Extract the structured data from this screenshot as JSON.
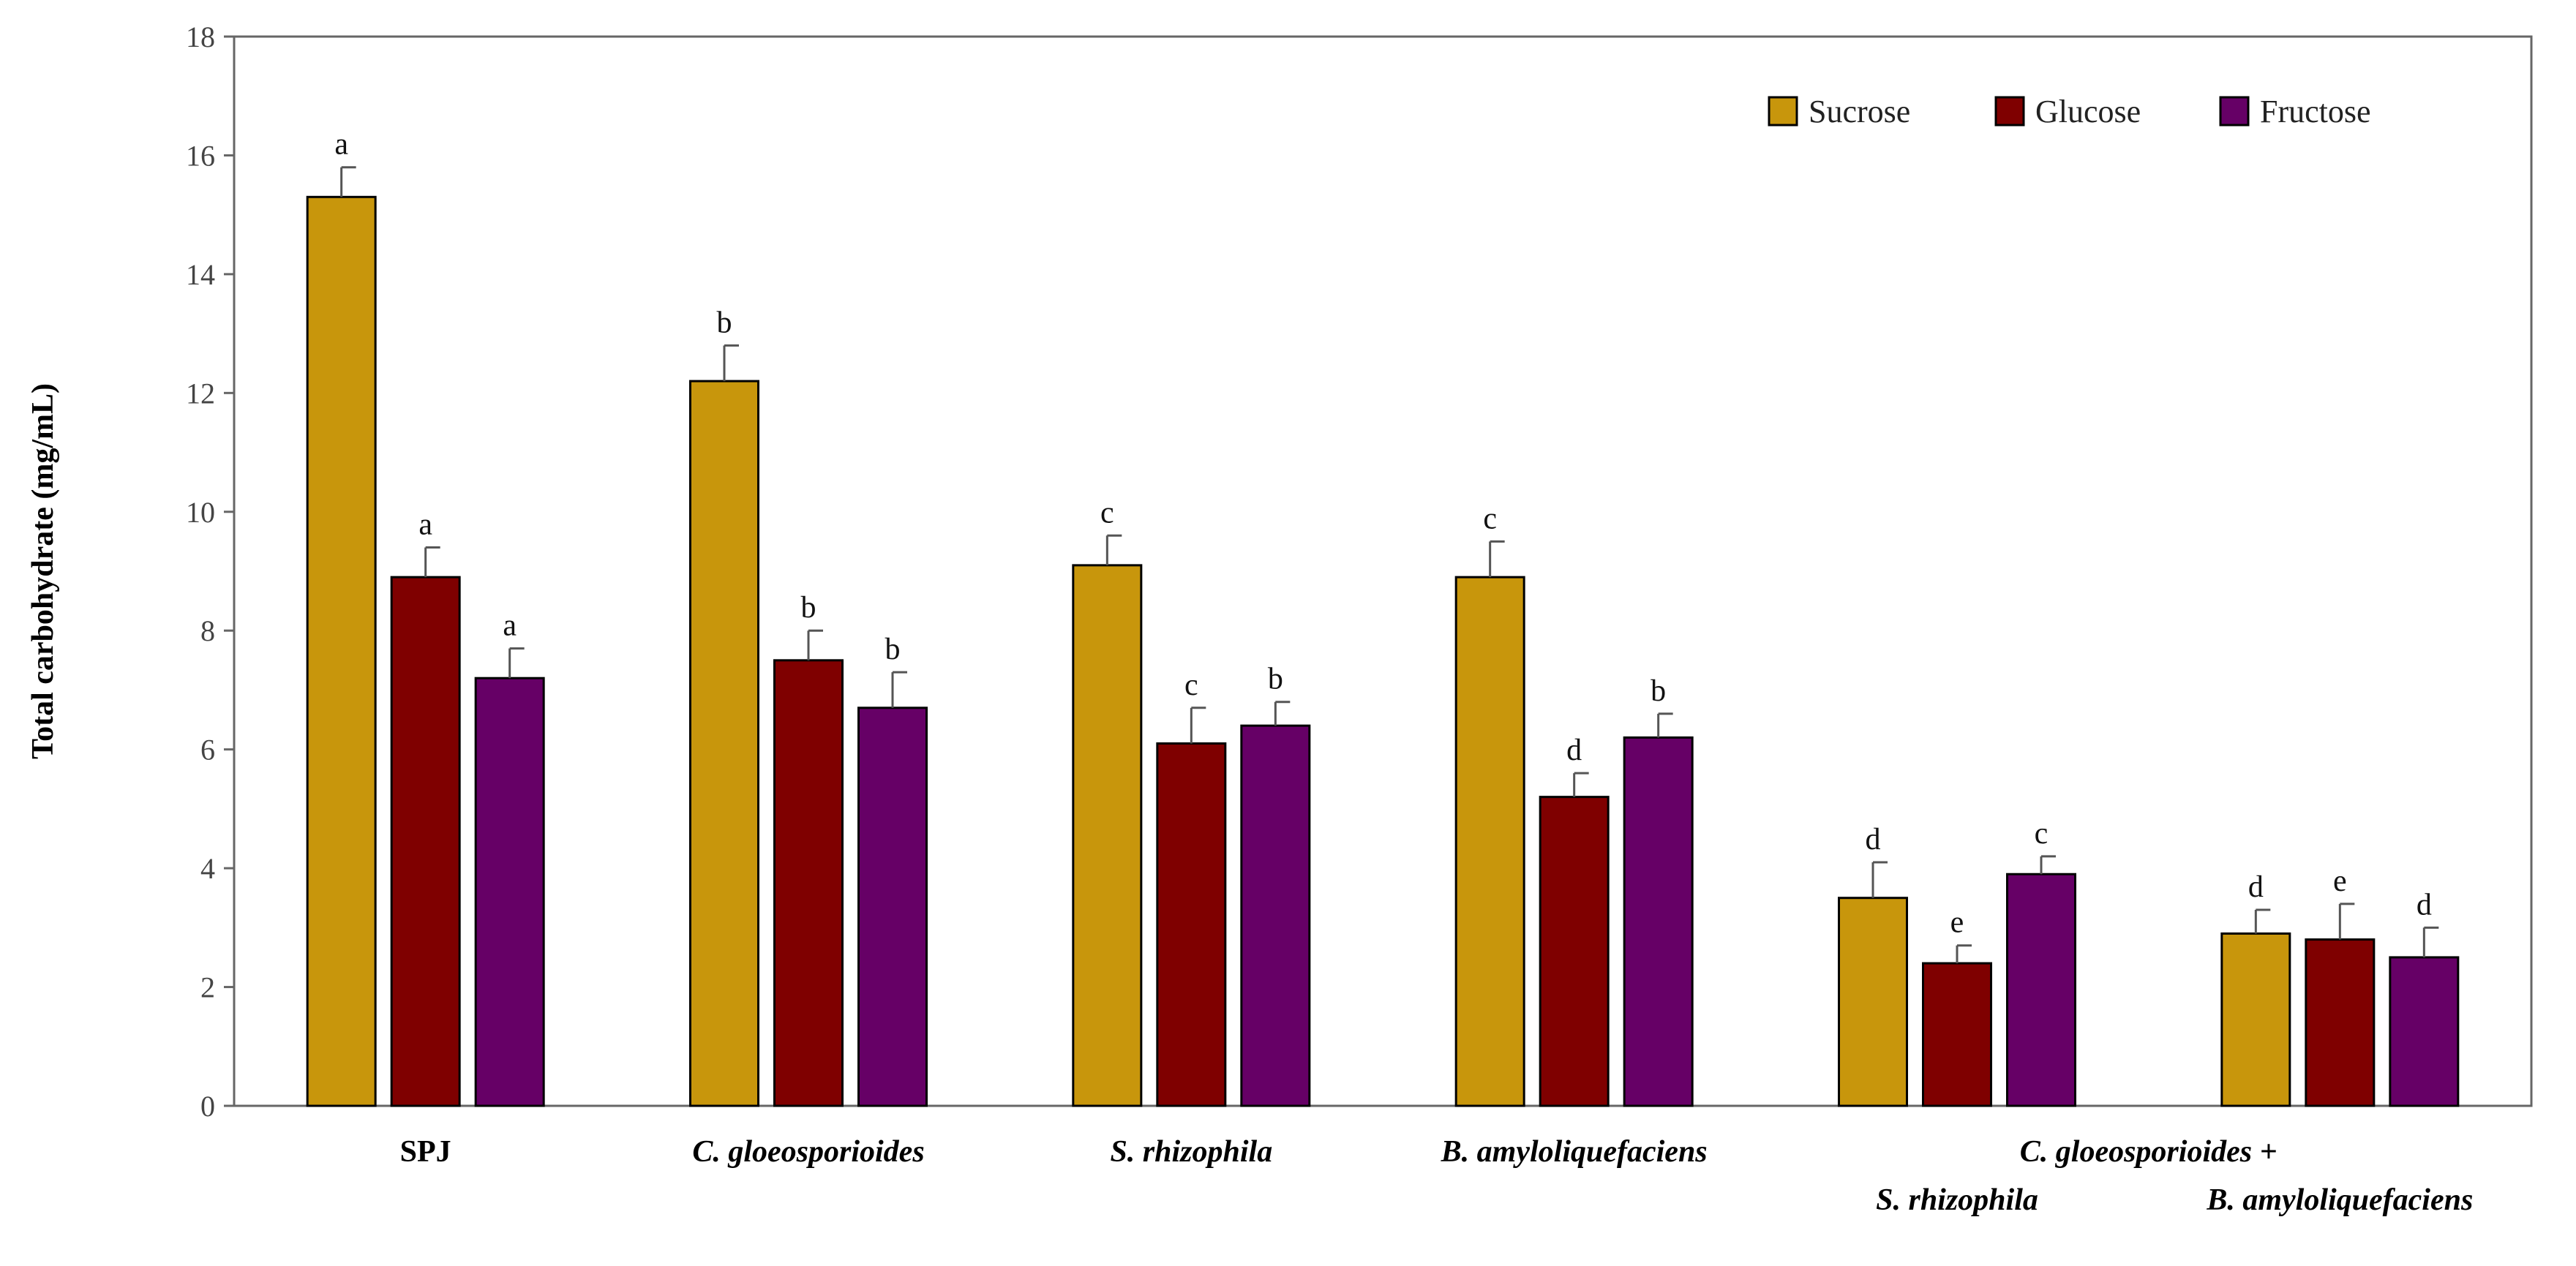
{
  "chart_data": {
    "type": "bar",
    "title": "",
    "xlabel": "",
    "ylabel": "Total carbohydrate (mg/mL)",
    "ylim": [
      0,
      18
    ],
    "yticks": [
      0,
      2,
      4,
      6,
      8,
      10,
      12,
      14,
      16,
      18
    ],
    "grid": false,
    "legend_position": "top-right",
    "categories": [
      {
        "lines": [
          "SPJ"
        ],
        "italic": false
      },
      {
        "lines": [
          "C. gloeosporioides"
        ],
        "italic": true
      },
      {
        "lines": [
          "S. rhizophila"
        ],
        "italic": true
      },
      {
        "lines": [
          "B. amyloliquefaciens"
        ],
        "italic": true
      },
      {
        "lines": [
          "C. gloeosporioides +",
          "S. rhizophila"
        ],
        "italic": true
      },
      {
        "lines": [
          "B. amyloliquefaciens"
        ],
        "italic": true
      }
    ],
    "series": [
      {
        "name": "Sucrose",
        "color": "#c8960c",
        "values": [
          15.3,
          12.2,
          9.1,
          8.9,
          3.5,
          2.9
        ],
        "errors": [
          0.5,
          0.6,
          0.5,
          0.6,
          0.6,
          0.4
        ],
        "letters": [
          "a",
          "b",
          "c",
          "c",
          "d",
          "d"
        ]
      },
      {
        "name": "Glucose",
        "color": "#7f0000",
        "values": [
          8.9,
          7.5,
          6.1,
          5.2,
          2.4,
          2.8
        ],
        "errors": [
          0.5,
          0.5,
          0.6,
          0.4,
          0.3,
          0.6
        ],
        "letters": [
          "a",
          "b",
          "c",
          "d",
          "e",
          "e"
        ]
      },
      {
        "name": "Fructose",
        "color": "#660066",
        "values": [
          7.2,
          6.7,
          6.4,
          6.2,
          3.9,
          2.5
        ],
        "errors": [
          0.5,
          0.6,
          0.4,
          0.4,
          0.3,
          0.5
        ],
        "letters": [
          "a",
          "b",
          "b",
          "b",
          "c",
          "d"
        ]
      }
    ]
  }
}
